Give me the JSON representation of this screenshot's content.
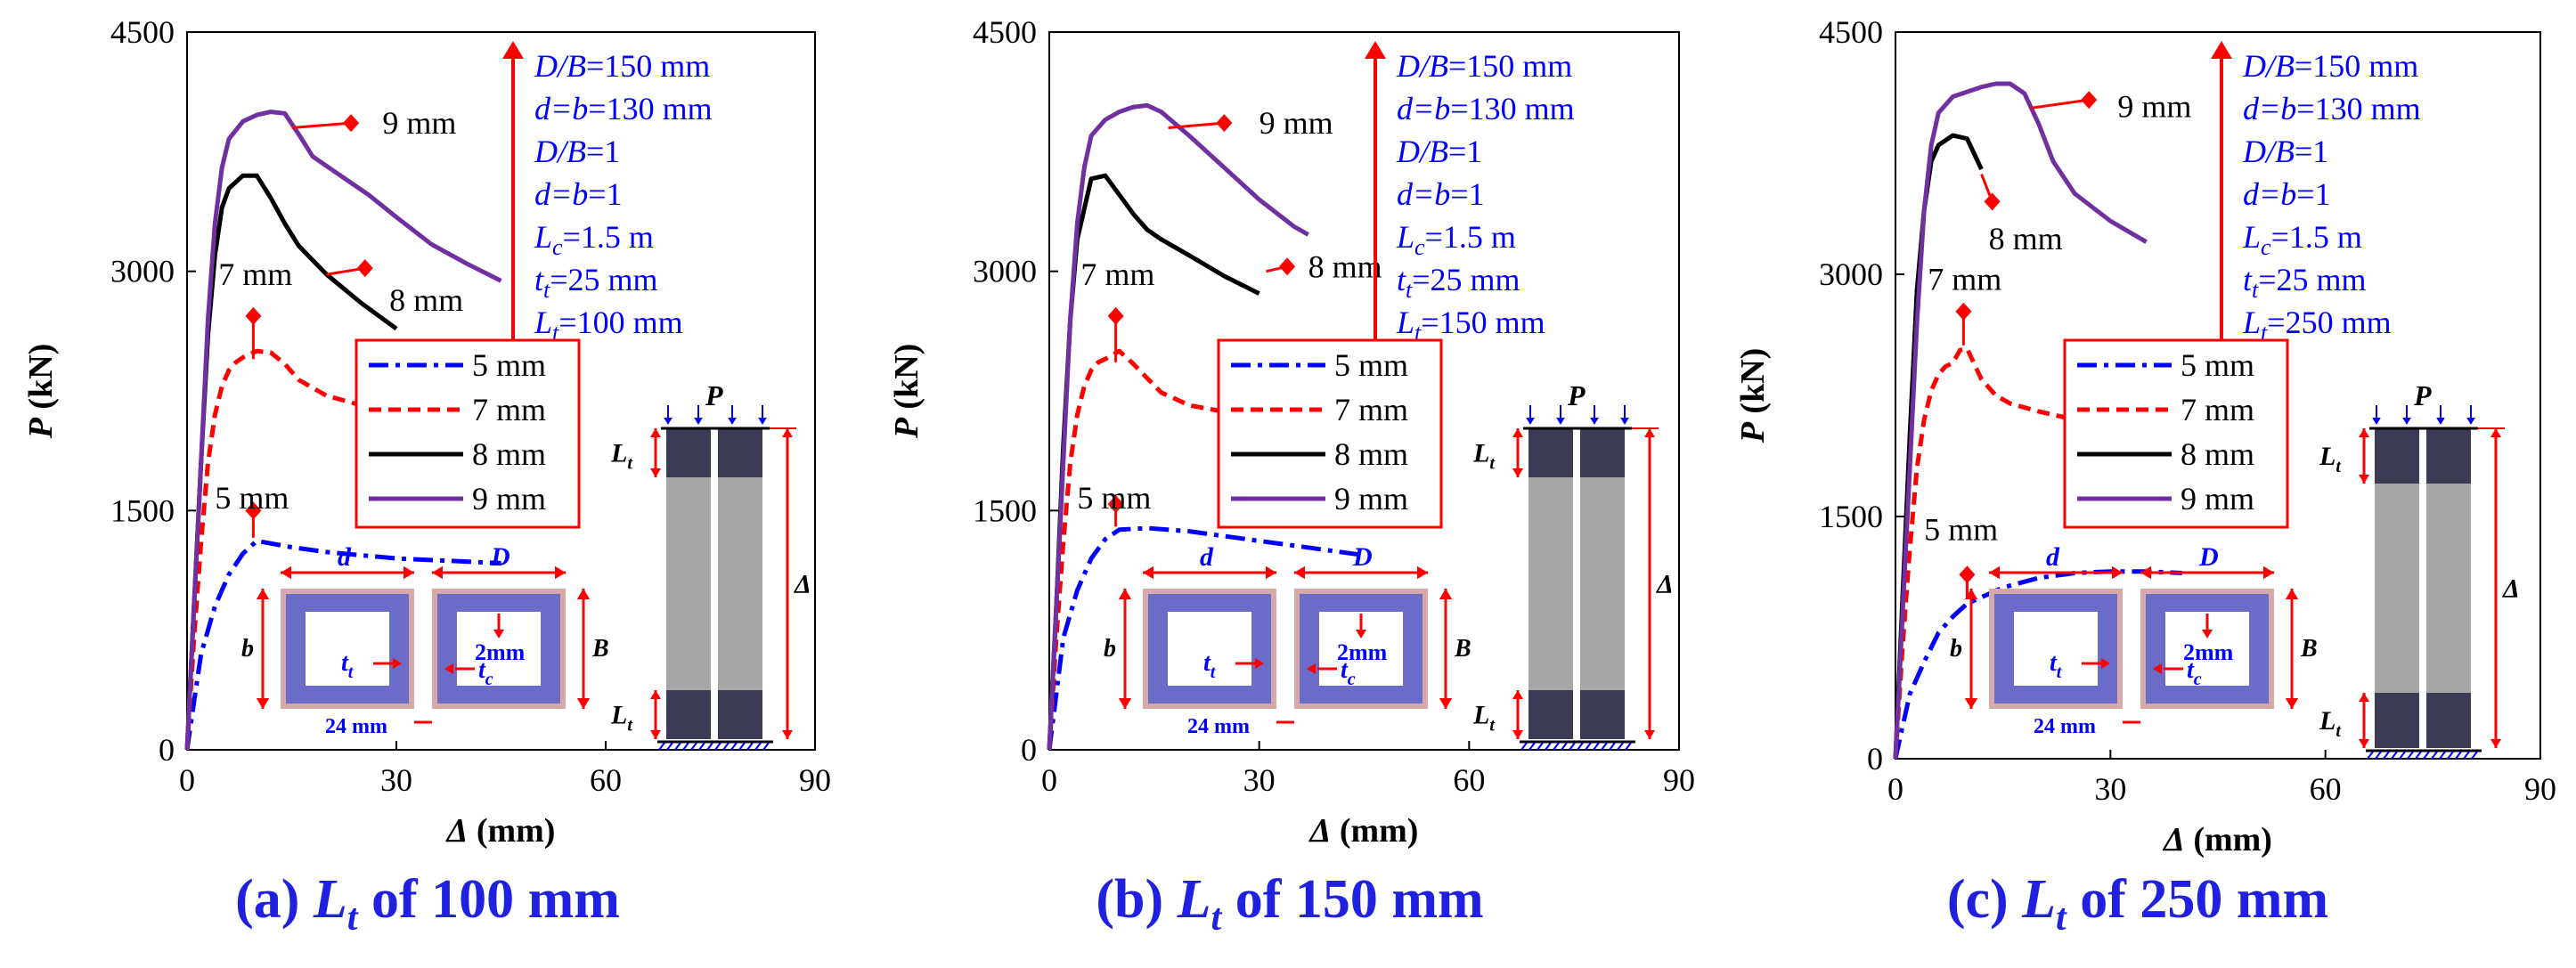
{
  "colors": {
    "series_5mm": "#0000ff",
    "series_7mm": "#ff0000",
    "series_8mm": "#000000",
    "series_9mm": "#7030a0",
    "annotation": "#0000ff",
    "dimension": "#ff0000",
    "tube_fill": "#6b6bc8",
    "tube_border": "#d6a8a8",
    "column_dark": "#3b3b55",
    "column_light": "#a6a6a6",
    "caption": "#2020e0"
  },
  "legend": [
    "5 mm",
    "7 mm",
    "8 mm",
    "9 mm"
  ],
  "inset": {
    "d": "d",
    "D": "D",
    "b": "b",
    "B": "B",
    "tt": "t",
    "tt_sub": "t",
    "tc": "t",
    "tc_sub": "c",
    "two_mm": "2mm",
    "gap": "24 mm",
    "P": "P",
    "Lt": "L",
    "Lt_sub": "t",
    "Delta": "Δ"
  },
  "chart_data": [
    {
      "type": "line",
      "caption": {
        "prefix": "(a) ",
        "var": "L",
        "sub": "t",
        "suffix": " of 100 mm"
      },
      "xlabel": "Δ (mm)",
      "ylabel": "P (kN)",
      "xlim": [
        0,
        90
      ],
      "ylim": [
        0,
        4500
      ],
      "xticks": [
        "0",
        "30",
        "60",
        "90"
      ],
      "yticks": [
        "0",
        "1500",
        "3000",
        "4500"
      ],
      "params": [
        {
          "pre": "D/B",
          "sub": "",
          "post": "=150 mm"
        },
        {
          "pre": "d=b",
          "sub": "",
          "post": "=130 mm"
        },
        {
          "pre": "D/B",
          "sub": "",
          "post": "=1"
        },
        {
          "pre": "d=b",
          "sub": "",
          "post": "=1"
        },
        {
          "pre": "L",
          "sub": "c",
          "post": "=1.5 m"
        },
        {
          "pre": "t",
          "sub": "t",
          "post": "=25 mm"
        },
        {
          "pre": "L",
          "sub": "t",
          "post": "=100 mm"
        }
      ],
      "labels": [
        {
          "text": "9 mm",
          "x": 28,
          "y": 3930
        },
        {
          "text": "7 mm",
          "x": 4.5,
          "y": 2980
        },
        {
          "text": "8 mm",
          "x": 29,
          "y": 2820
        },
        {
          "text": "5 mm",
          "x": 4,
          "y": 1580
        }
      ],
      "markers": [
        {
          "x": 23.5,
          "y": 3930,
          "fx": 15,
          "fy": 3900
        },
        {
          "x": 25.5,
          "y": 3020,
          "fx": 20,
          "fy": 2980
        },
        {
          "x": 9.5,
          "y": 2720,
          "fx": 9.5,
          "fy": 2450
        },
        {
          "x": 9.5,
          "y": 1500,
          "fx": 9.5,
          "fy": 1330
        }
      ],
      "series": [
        {
          "name": "5 mm",
          "x": [
            0,
            1,
            2,
            4,
            6,
            8,
            10,
            15,
            20,
            25,
            30,
            35,
            40,
            45
          ],
          "y": [
            0,
            300,
            600,
            900,
            1100,
            1230,
            1310,
            1270,
            1240,
            1220,
            1200,
            1190,
            1180,
            1170
          ]
        },
        {
          "name": "7 mm",
          "x": [
            0,
            1,
            2,
            3,
            4,
            5,
            6,
            7,
            8,
            10,
            12,
            14,
            16,
            20,
            25,
            30
          ],
          "y": [
            0,
            700,
            1300,
            1800,
            2100,
            2280,
            2380,
            2430,
            2460,
            2500,
            2490,
            2420,
            2320,
            2220,
            2160,
            2120
          ]
        },
        {
          "name": "8 mm",
          "x": [
            0,
            1,
            2,
            3,
            4,
            5,
            6,
            8,
            10,
            12,
            14,
            16,
            20,
            25,
            30
          ],
          "y": [
            0,
            900,
            1800,
            2600,
            3100,
            3400,
            3520,
            3600,
            3600,
            3460,
            3300,
            3160,
            2980,
            2800,
            2640
          ]
        },
        {
          "name": "9 mm",
          "x": [
            0,
            1,
            2,
            3,
            4,
            5,
            6,
            8,
            10,
            12,
            14,
            16,
            18,
            22,
            26,
            30,
            35,
            40,
            45
          ],
          "y": [
            0,
            900,
            1800,
            2700,
            3300,
            3650,
            3830,
            3940,
            3980,
            4000,
            3990,
            3860,
            3720,
            3600,
            3480,
            3340,
            3170,
            3050,
            2940
          ]
        }
      ]
    },
    {
      "type": "line",
      "caption": {
        "prefix": "(b) ",
        "var": "L",
        "sub": "t",
        "suffix": " of 150 mm"
      },
      "xlabel": "Δ (mm)",
      "ylabel": "P (kN)",
      "xlim": [
        0,
        90
      ],
      "ylim": [
        0,
        4500
      ],
      "xticks": [
        "0",
        "30",
        "60",
        "90"
      ],
      "yticks": [
        "0",
        "1500",
        "3000",
        "4500"
      ],
      "params": [
        {
          "pre": "D/B",
          "sub": "",
          "post": "=150 mm"
        },
        {
          "pre": "d=b",
          "sub": "",
          "post": "=130 mm"
        },
        {
          "pre": "D/B",
          "sub": "",
          "post": "=1"
        },
        {
          "pre": "d=b",
          "sub": "",
          "post": "=1"
        },
        {
          "pre": "L",
          "sub": "c",
          "post": "=1.5 m"
        },
        {
          "pre": "t",
          "sub": "t",
          "post": "=25 mm"
        },
        {
          "pre": "L",
          "sub": "t",
          "post": "=150 mm"
        }
      ],
      "labels": [
        {
          "text": "9 mm",
          "x": 30,
          "y": 3930
        },
        {
          "text": "7 mm",
          "x": 4.5,
          "y": 2980
        },
        {
          "text": "8 mm",
          "x": 37,
          "y": 3030
        },
        {
          "text": "5 mm",
          "x": 4,
          "y": 1580
        }
      ],
      "markers": [
        {
          "x": 25,
          "y": 3930,
          "fx": 17,
          "fy": 3900
        },
        {
          "x": 34,
          "y": 3030,
          "fx": 31,
          "fy": 3000
        },
        {
          "x": 9.5,
          "y": 2720,
          "fx": 9.5,
          "fy": 2430
        },
        {
          "x": 9.5,
          "y": 1540,
          "fx": 9.5,
          "fy": 1400
        }
      ],
      "series": [
        {
          "name": "5 mm",
          "x": [
            0,
            1,
            2,
            4,
            6,
            8,
            10,
            14,
            20,
            25,
            30,
            35,
            40,
            45
          ],
          "y": [
            0,
            350,
            700,
            1000,
            1200,
            1320,
            1380,
            1390,
            1370,
            1340,
            1310,
            1280,
            1250,
            1220
          ]
        },
        {
          "name": "7 mm",
          "x": [
            0,
            1,
            2,
            3,
            4,
            5,
            6,
            7,
            8,
            10,
            12,
            14,
            16,
            20,
            25,
            30
          ],
          "y": [
            0,
            700,
            1300,
            1800,
            2100,
            2280,
            2380,
            2430,
            2450,
            2500,
            2420,
            2330,
            2240,
            2160,
            2120,
            2100
          ]
        },
        {
          "name": "8 mm",
          "x": [
            0,
            1,
            2,
            3,
            4,
            6,
            8,
            10,
            12,
            14,
            16,
            20,
            25,
            30
          ],
          "y": [
            0,
            900,
            1900,
            2700,
            3200,
            3580,
            3600,
            3480,
            3360,
            3260,
            3200,
            3100,
            2970,
            2860
          ]
        },
        {
          "name": "9 mm",
          "x": [
            0,
            1,
            2,
            3,
            4,
            5,
            6,
            8,
            10,
            12,
            14,
            16,
            20,
            25,
            30,
            35,
            37
          ],
          "y": [
            0,
            900,
            1800,
            2700,
            3300,
            3650,
            3850,
            3950,
            4000,
            4030,
            4040,
            4000,
            3850,
            3650,
            3450,
            3280,
            3230
          ]
        }
      ]
    },
    {
      "type": "line",
      "caption": {
        "prefix": "(c) ",
        "var": "L",
        "sub": "t",
        "suffix": " of 250 mm"
      },
      "xlabel": "Δ (mm)",
      "ylabel": "P (kN)",
      "xlim": [
        0,
        90
      ],
      "ylim": [
        0,
        4500
      ],
      "xticks": [
        "0",
        "30",
        "60",
        "90"
      ],
      "yticks": [
        "0",
        "1500",
        "3000",
        "4500"
      ],
      "params": [
        {
          "pre": "D/B",
          "sub": "",
          "post": "=150 mm"
        },
        {
          "pre": "d=b",
          "sub": "",
          "post": "=130 mm"
        },
        {
          "pre": "D/B",
          "sub": "",
          "post": "=1"
        },
        {
          "pre": "d=b",
          "sub": "",
          "post": "=1"
        },
        {
          "pre": "L",
          "sub": "c",
          "post": "=1.5 m"
        },
        {
          "pre": "t",
          "sub": "t",
          "post": "=25 mm"
        },
        {
          "pre": "L",
          "sub": "t",
          "post": "=250 mm"
        }
      ],
      "labels": [
        {
          "text": "9 mm",
          "x": 31,
          "y": 4040
        },
        {
          "text": "8 mm",
          "x": 13,
          "y": 3220
        },
        {
          "text": "7 mm",
          "x": 4.5,
          "y": 2970
        },
        {
          "text": "5 mm",
          "x": 4,
          "y": 1420
        }
      ],
      "markers": [
        {
          "x": 27,
          "y": 4080,
          "fx": 19,
          "fy": 4030
        },
        {
          "x": 13.5,
          "y": 3450,
          "fx": 12,
          "fy": 3620
        },
        {
          "x": 9.5,
          "y": 2770,
          "fx": 9.5,
          "fy": 2560
        },
        {
          "x": 10,
          "y": 1140,
          "fx": 10,
          "fy": 1000
        }
      ],
      "series": [
        {
          "name": "5 mm",
          "x": [
            0,
            1,
            2,
            4,
            6,
            8,
            10,
            15,
            20,
            25,
            30,
            35,
            40
          ],
          "y": [
            0,
            200,
            400,
            600,
            780,
            880,
            960,
            1060,
            1120,
            1150,
            1160,
            1160,
            1150
          ]
        },
        {
          "name": "7 mm",
          "x": [
            0,
            1,
            2,
            3,
            4,
            5,
            6,
            7,
            8,
            9,
            10,
            12,
            14,
            16,
            20,
            25,
            30
          ],
          "y": [
            0,
            700,
            1300,
            1800,
            2100,
            2280,
            2380,
            2430,
            2450,
            2530,
            2540,
            2350,
            2250,
            2200,
            2150,
            2100,
            2090
          ]
        },
        {
          "name": "8 mm",
          "x": [
            0,
            1,
            2,
            3,
            4,
            5,
            6,
            8,
            10,
            12
          ],
          "y": [
            0,
            1000,
            2000,
            2900,
            3400,
            3700,
            3800,
            3860,
            3840,
            3650
          ]
        },
        {
          "name": "9 mm",
          "x": [
            0,
            1,
            2,
            3,
            4,
            5,
            6,
            8,
            10,
            12,
            14,
            16,
            18,
            20,
            22,
            25,
            30,
            35
          ],
          "y": [
            0,
            900,
            1800,
            2700,
            3400,
            3800,
            4000,
            4100,
            4130,
            4160,
            4180,
            4180,
            4120,
            3930,
            3700,
            3500,
            3330,
            3200
          ]
        }
      ]
    }
  ]
}
